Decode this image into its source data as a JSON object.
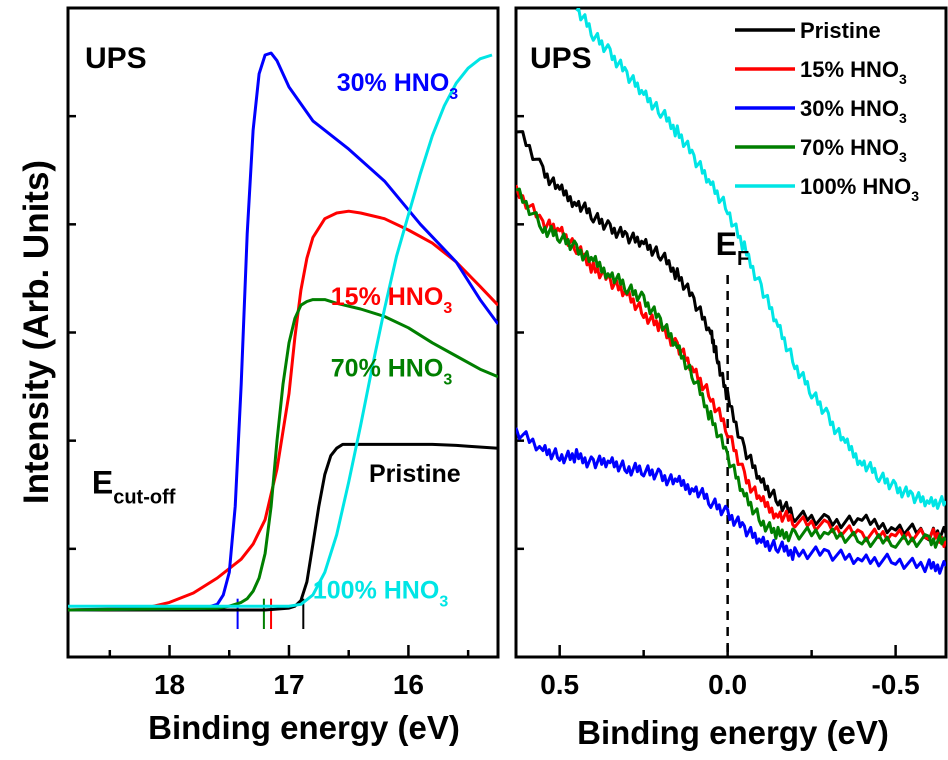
{
  "figure": {
    "ylabel": "Intensity (Arb. Units)"
  },
  "chart_data": [
    {
      "type": "line",
      "panel_label": "UPS",
      "xlabel": "Binding energy (eV)",
      "ylabel": "Intensity (Arb. Units)",
      "xlim": [
        18.85,
        15.25
      ],
      "ylim": [
        -0.25,
        3.2
      ],
      "x_reversed": true,
      "xticks": [
        18,
        17,
        16
      ],
      "xtick_labels": [
        "18",
        "17",
        "16"
      ],
      "grid": false,
      "legend": "none",
      "series": [
        {
          "name": "Pristine",
          "color": "#000000",
          "x": [
            18.85,
            17.5,
            17.2,
            17.0,
            16.95,
            16.9,
            16.85,
            16.8,
            16.75,
            16.7,
            16.65,
            16.6,
            16.55,
            16.5,
            16.4,
            16.2,
            16.0,
            15.8,
            15.6,
            15.5,
            15.25
          ],
          "y": [
            0.0,
            0.0,
            0.0,
            0.01,
            0.02,
            0.05,
            0.15,
            0.35,
            0.55,
            0.72,
            0.82,
            0.86,
            0.88,
            0.88,
            0.88,
            0.88,
            0.88,
            0.88,
            0.875,
            0.87,
            0.86
          ],
          "label": "Pristine",
          "label_color": "#000000",
          "label_at": [
            16.33,
            0.68
          ]
        },
        {
          "name": "15% HNO3",
          "color": "#ff0000",
          "x": [
            18.85,
            18.2,
            18.0,
            17.8,
            17.6,
            17.4,
            17.3,
            17.2,
            17.1,
            17.0,
            16.95,
            16.9,
            16.85,
            16.8,
            16.7,
            16.6,
            16.5,
            16.4,
            16.2,
            16.0,
            15.8,
            15.6,
            15.4,
            15.25
          ],
          "y": [
            0.0,
            0.01,
            0.04,
            0.09,
            0.17,
            0.27,
            0.35,
            0.48,
            0.75,
            1.15,
            1.45,
            1.7,
            1.87,
            1.98,
            2.08,
            2.11,
            2.12,
            2.11,
            2.08,
            2.02,
            1.95,
            1.85,
            1.72,
            1.62
          ],
          "label": "15% HNO",
          "label_sub": "3",
          "label_color": "#ff0000",
          "label_at": [
            16.65,
            1.62
          ]
        },
        {
          "name": "30% HNO3",
          "color": "#0000ff",
          "x": [
            18.85,
            17.7,
            17.6,
            17.55,
            17.5,
            17.45,
            17.4,
            17.35,
            17.3,
            17.25,
            17.2,
            17.15,
            17.1,
            17.0,
            16.8,
            16.5,
            16.2,
            15.9,
            15.6,
            15.4,
            15.25
          ],
          "y": [
            0.0,
            0.01,
            0.03,
            0.08,
            0.2,
            0.55,
            1.2,
            2.0,
            2.55,
            2.85,
            2.95,
            2.96,
            2.92,
            2.78,
            2.6,
            2.45,
            2.28,
            2.05,
            1.85,
            1.65,
            1.52
          ],
          "label": "30% HNO",
          "label_sub": "3",
          "label_color": "#0000ff",
          "label_at": [
            16.6,
            2.76
          ]
        },
        {
          "name": "70% HNO3",
          "color": "#007f00",
          "x": [
            18.85,
            17.6,
            17.5,
            17.4,
            17.35,
            17.3,
            17.25,
            17.2,
            17.15,
            17.1,
            17.05,
            17.0,
            16.95,
            16.9,
            16.85,
            16.8,
            16.7,
            16.6,
            16.4,
            16.2,
            16.0,
            15.8,
            15.6,
            15.4,
            15.25
          ],
          "y": [
            0.0,
            0.01,
            0.02,
            0.04,
            0.06,
            0.1,
            0.17,
            0.3,
            0.55,
            0.9,
            1.2,
            1.42,
            1.55,
            1.62,
            1.64,
            1.65,
            1.65,
            1.63,
            1.6,
            1.56,
            1.5,
            1.42,
            1.35,
            1.28,
            1.24
          ],
          "label": "70% HNO",
          "label_sub": "3",
          "label_color": "#007f00",
          "label_at": [
            16.65,
            1.24
          ]
        },
        {
          "name": "100% HNO3",
          "color": "#00e5e5",
          "x": [
            18.85,
            17.2,
            17.0,
            16.9,
            16.8,
            16.7,
            16.6,
            16.5,
            16.4,
            16.3,
            16.2,
            16.1,
            16.0,
            15.9,
            15.8,
            15.7,
            15.6,
            15.5,
            15.4,
            15.3
          ],
          "y": [
            0.02,
            0.02,
            0.02,
            0.03,
            0.08,
            0.2,
            0.4,
            0.68,
            0.98,
            1.3,
            1.6,
            1.88,
            2.1,
            2.32,
            2.52,
            2.68,
            2.8,
            2.88,
            2.93,
            2.95
          ],
          "label": "100% HNO",
          "label_sub": "3",
          "label_color": "#00e5e5",
          "label_at": [
            16.8,
            0.06
          ]
        }
      ],
      "onset_markers": [
        {
          "series": "30% HNO3",
          "x": 17.43,
          "color": "#0000ff"
        },
        {
          "series": "70% HNO3",
          "x": 17.21,
          "color": "#007f00"
        },
        {
          "series": "15% HNO3",
          "x": 17.15,
          "color": "#ff0000"
        },
        {
          "series": "Pristine",
          "x": 16.88,
          "color": "#000000"
        }
      ],
      "annotations": [
        {
          "text": "E",
          "sub": "cut-off",
          "at": [
            18.65,
            0.62
          ]
        }
      ]
    },
    {
      "type": "line",
      "panel_label": "UPS",
      "xlabel": "Binding energy (eV)",
      "xlim": [
        0.63,
        -0.65
      ],
      "ylim": [
        0.0,
        1.0
      ],
      "x_reversed": true,
      "xticks": [
        0.5,
        0.0,
        -0.5
      ],
      "xtick_labels": [
        "0.5",
        "0.0",
        "-0.5"
      ],
      "grid": false,
      "legend": "top-right",
      "fermi_level": {
        "x": 0.0,
        "label": "E",
        "label_sub": "F"
      },
      "series": [
        {
          "name": "Pristine",
          "color": "#000000",
          "x": [
            0.63,
            0.55,
            0.5,
            0.45,
            0.4,
            0.35,
            0.3,
            0.25,
            0.2,
            0.15,
            0.1,
            0.05,
            0.03,
            0.0,
            -0.05,
            -0.1,
            -0.15,
            -0.2,
            -0.3,
            -0.4,
            -0.5,
            -0.6,
            -0.65
          ],
          "y": [
            0.82,
            0.75,
            0.72,
            0.7,
            0.68,
            0.66,
            0.65,
            0.64,
            0.62,
            0.59,
            0.55,
            0.5,
            0.46,
            0.4,
            0.32,
            0.27,
            0.24,
            0.22,
            0.21,
            0.21,
            0.2,
            0.19,
            0.19
          ],
          "legend_label": "Pristine"
        },
        {
          "name": "15% HNO3",
          "color": "#ff0000",
          "x": [
            0.63,
            0.55,
            0.5,
            0.45,
            0.4,
            0.35,
            0.3,
            0.25,
            0.2,
            0.15,
            0.1,
            0.05,
            0.0,
            -0.05,
            -0.1,
            -0.15,
            -0.2,
            -0.3,
            -0.4,
            -0.5,
            -0.6,
            -0.65
          ],
          "y": [
            0.72,
            0.67,
            0.66,
            0.63,
            0.6,
            0.58,
            0.56,
            0.53,
            0.51,
            0.48,
            0.44,
            0.4,
            0.35,
            0.28,
            0.24,
            0.22,
            0.21,
            0.2,
            0.19,
            0.19,
            0.19,
            0.18
          ],
          "legend_label": "15% HNO",
          "legend_sub": "3"
        },
        {
          "name": "30% HNO3",
          "color": "#0000ff",
          "x": [
            0.63,
            0.55,
            0.5,
            0.45,
            0.4,
            0.35,
            0.3,
            0.25,
            0.2,
            0.15,
            0.1,
            0.05,
            0.0,
            -0.05,
            -0.1,
            -0.15,
            -0.2,
            -0.3,
            -0.4,
            -0.5,
            -0.6,
            -0.65
          ],
          "y": [
            0.35,
            0.32,
            0.31,
            0.31,
            0.3,
            0.3,
            0.29,
            0.29,
            0.28,
            0.27,
            0.26,
            0.24,
            0.22,
            0.2,
            0.18,
            0.17,
            0.16,
            0.16,
            0.15,
            0.15,
            0.14,
            0.14
          ],
          "legend_label": "30% HNO",
          "legend_sub": "3"
        },
        {
          "name": "70% HNO3",
          "color": "#007f00",
          "x": [
            0.63,
            0.55,
            0.5,
            0.45,
            0.4,
            0.35,
            0.3,
            0.25,
            0.2,
            0.15,
            0.1,
            0.05,
            0.0,
            -0.05,
            -0.1,
            -0.15,
            -0.2,
            -0.3,
            -0.4,
            -0.5,
            -0.6,
            -0.65
          ],
          "y": [
            0.72,
            0.66,
            0.65,
            0.63,
            0.61,
            0.59,
            0.57,
            0.55,
            0.52,
            0.48,
            0.43,
            0.37,
            0.31,
            0.25,
            0.21,
            0.19,
            0.19,
            0.19,
            0.18,
            0.18,
            0.18,
            0.18
          ],
          "legend_label": "70% HNO",
          "legend_sub": "3"
        },
        {
          "name": "100% HNO3",
          "color": "#00e5e5",
          "x": [
            0.45,
            0.4,
            0.35,
            0.3,
            0.25,
            0.2,
            0.15,
            0.1,
            0.05,
            0.0,
            -0.05,
            -0.1,
            -0.15,
            -0.2,
            -0.25,
            -0.3,
            -0.35,
            -0.4,
            -0.45,
            -0.5,
            -0.55,
            -0.6,
            -0.65
          ],
          "y": [
            1.0,
            0.96,
            0.93,
            0.9,
            0.87,
            0.84,
            0.81,
            0.77,
            0.73,
            0.69,
            0.63,
            0.57,
            0.51,
            0.45,
            0.41,
            0.37,
            0.33,
            0.3,
            0.28,
            0.26,
            0.25,
            0.24,
            0.24
          ],
          "legend_label": "100% HNO",
          "legend_sub": "3"
        }
      ]
    }
  ]
}
